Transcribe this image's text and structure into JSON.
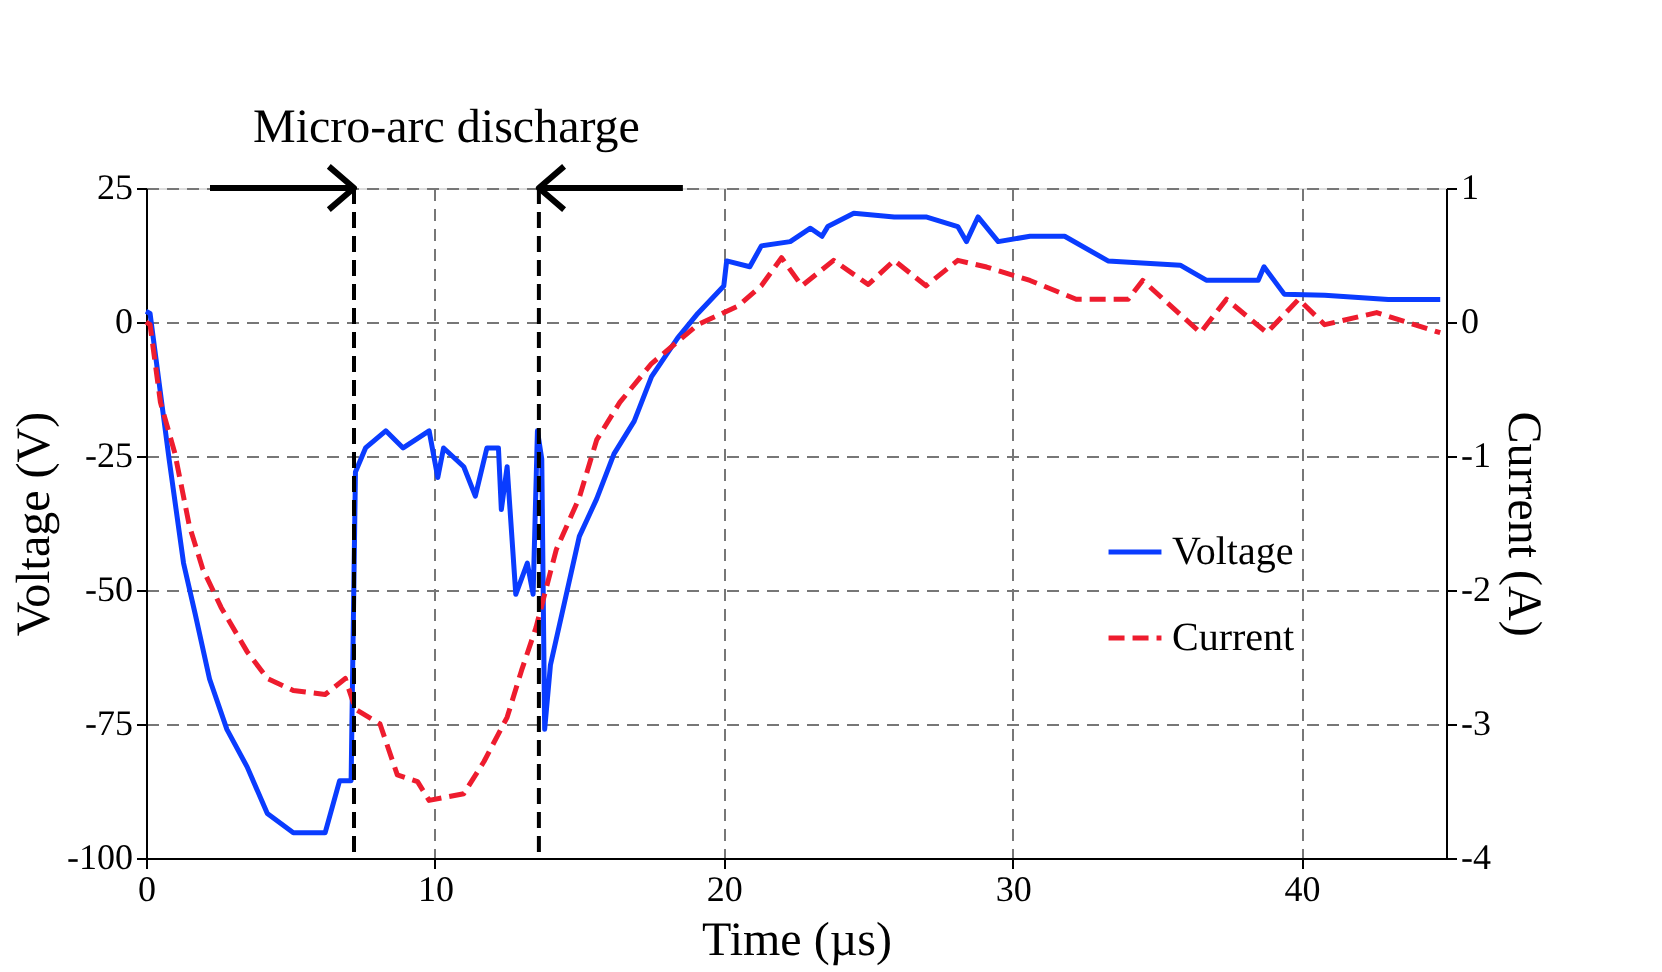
{
  "chart_data": {
    "type": "line",
    "xlabel": "Time (µs)",
    "ylabel": "Voltage (V)",
    "y2label": "Current (A)",
    "annotations": [
      "Micro-arc discharge"
    ],
    "xlim": [
      0,
      45
    ],
    "xticks": [
      0,
      10,
      20,
      30,
      40
    ],
    "ylim": [
      -100,
      25
    ],
    "yticks": [
      -100,
      -75,
      -50,
      -25,
      0,
      25
    ],
    "y2lim": [
      -4,
      1
    ],
    "y2ticks": [
      -4,
      -3,
      -2,
      -1,
      0,
      1
    ],
    "grid": true,
    "legend": "right",
    "marker": "none",
    "ref_lines": [
      {
        "axis": "x",
        "value": 7.2,
        "label": null,
        "color": "#000000",
        "line_style": "dashed"
      },
      {
        "axis": "x",
        "value": 13.6,
        "label": null,
        "color": "#000000",
        "line_style": "dashed"
      }
    ],
    "series": [
      {
        "name": "Voltage",
        "color": "#0a3cff",
        "line_style": "solid",
        "x": [
          0.0,
          0.14,
          0.8,
          1.3,
          1.7,
          2.2,
          2.8,
          3.5,
          4.2,
          5.1,
          6.2,
          6.7,
          7.1,
          7.25,
          7.6,
          8.3,
          8.9,
          9.8,
          10.1,
          10.3,
          11.0,
          11.4,
          11.8,
          12.2,
          12.3,
          12.5,
          12.8,
          13.2,
          13.4,
          13.55,
          13.7,
          13.8,
          14.0,
          14.5,
          15.0,
          15.6,
          16.2,
          16.9,
          17.5,
          18.4,
          19.1,
          20.0,
          20.1,
          20.9,
          21.3,
          22.3,
          23.0,
          23.4,
          23.6,
          24.5,
          25.9,
          27.0,
          28.1,
          28.4,
          28.8,
          29.5,
          30.6,
          31.8,
          33.3,
          35.8,
          36.7,
          38.5,
          38.7,
          39.4,
          40.8,
          43.0,
          44.8
        ],
        "values": [
          2,
          1.6,
          -25.6,
          -45,
          -54.4,
          -66.6,
          -76,
          -83,
          -91.7,
          -95.3,
          -95.3,
          -85.6,
          -85.6,
          -28,
          -23.5,
          -20.3,
          -23.5,
          -20.3,
          -29,
          -23.5,
          -27,
          -32.5,
          -23.5,
          -23.5,
          -35,
          -27,
          -50.8,
          -45,
          -50.8,
          -20.3,
          -25.6,
          -76,
          -64,
          -52,
          -40,
          -33,
          -24.6,
          -18.5,
          -10.2,
          -3,
          1.6,
          6.7,
          11.4,
          10.3,
          14.2,
          15,
          17.5,
          16,
          17.8,
          20.3,
          19.6,
          19.6,
          17.8,
          15,
          19.6,
          15,
          16,
          16,
          11.4,
          10.6,
          7.8,
          7.8,
          10.3,
          5.2,
          5,
          4.2,
          4.2
        ]
      },
      {
        "name": "Current",
        "color": "#ee1c2e",
        "line_style": "dashed",
        "axis": "y2",
        "x": [
          0.0,
          0.14,
          0.5,
          1.0,
          1.5,
          1.96,
          2.6,
          3.5,
          4.2,
          5.1,
          6.2,
          6.9,
          7.25,
          8.1,
          8.7,
          9.4,
          9.8,
          11.0,
          11.7,
          12.5,
          13.0,
          13.5,
          14.2,
          15.0,
          15.6,
          16.4,
          17.5,
          19.1,
          20.5,
          21.3,
          22.0,
          22.7,
          23.8,
          25.0,
          25.9,
          27.0,
          28.1,
          29.1,
          30.6,
          32.2,
          34.0,
          34.5,
          36.5,
          37.4,
          38.8,
          39.9,
          40.8,
          42.6,
          44.8
        ],
        "values": [
          0.0,
          -0.02,
          -0.6,
          -0.98,
          -1.52,
          -1.84,
          -2.13,
          -2.46,
          -2.66,
          -2.75,
          -2.78,
          -2.66,
          -2.89,
          -3.0,
          -3.38,
          -3.43,
          -3.57,
          -3.52,
          -3.28,
          -2.95,
          -2.6,
          -2.28,
          -1.7,
          -1.31,
          -0.88,
          -0.6,
          -0.31,
          -0.02,
          0.12,
          0.27,
          0.48,
          0.27,
          0.46,
          0.28,
          0.46,
          0.27,
          0.46,
          0.41,
          0.31,
          0.17,
          0.17,
          0.31,
          -0.08,
          0.17,
          -0.08,
          0.17,
          -0.02,
          0.07,
          -0.08
        ]
      }
    ]
  }
}
